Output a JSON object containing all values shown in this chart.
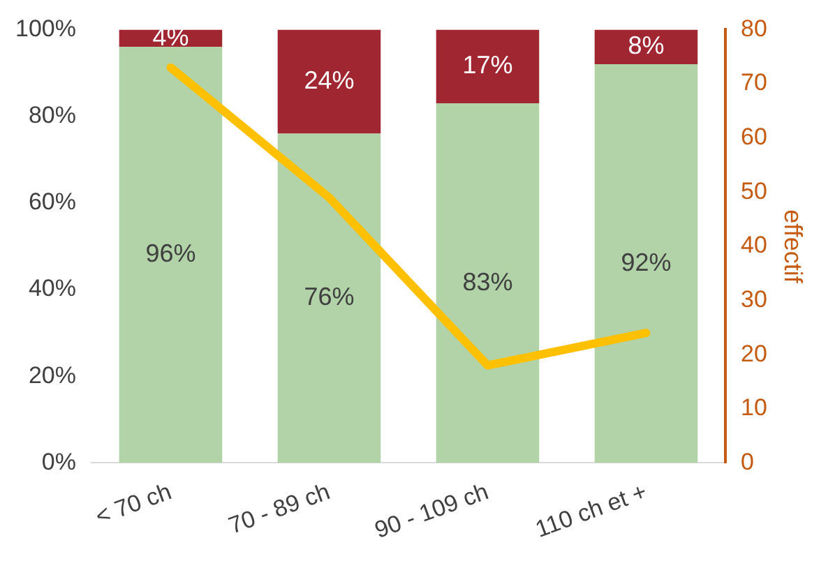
{
  "chart_data": {
    "type": "bar",
    "stacked": true,
    "categories": [
      "< 70 ch",
      "70 - 89 ch",
      "90 - 109 ch",
      "110 ch et +"
    ],
    "series": [
      {
        "color": "#b1d3a7",
        "values": [
          96,
          76,
          83,
          92
        ],
        "value_labels": [
          "96%",
          "76%",
          "83%",
          "92%"
        ]
      },
      {
        "color": "#a02631",
        "values": [
          4,
          24,
          17,
          8
        ],
        "value_labels": [
          "4%",
          "24%",
          "17%",
          "8%"
        ]
      },
      {
        "type": "line",
        "axis": "y2",
        "color": "#ffc000",
        "values": [
          73,
          49,
          18,
          24
        ]
      }
    ],
    "ylim": [
      0,
      100
    ],
    "yticks": [
      {
        "value": 0,
        "label": "0%"
      },
      {
        "value": 20,
        "label": "20%"
      },
      {
        "value": 40,
        "label": "40%"
      },
      {
        "value": 60,
        "label": "60%"
      },
      {
        "value": 80,
        "label": "80%"
      },
      {
        "value": 100,
        "label": "100%"
      }
    ],
    "y2lim": [
      0,
      80
    ],
    "y2ticks": [
      0,
      10,
      20,
      30,
      40,
      50,
      60,
      70,
      80
    ],
    "y2label": "effectif",
    "grid": false,
    "legend": false,
    "marker": "none",
    "line_style": "solid"
  }
}
